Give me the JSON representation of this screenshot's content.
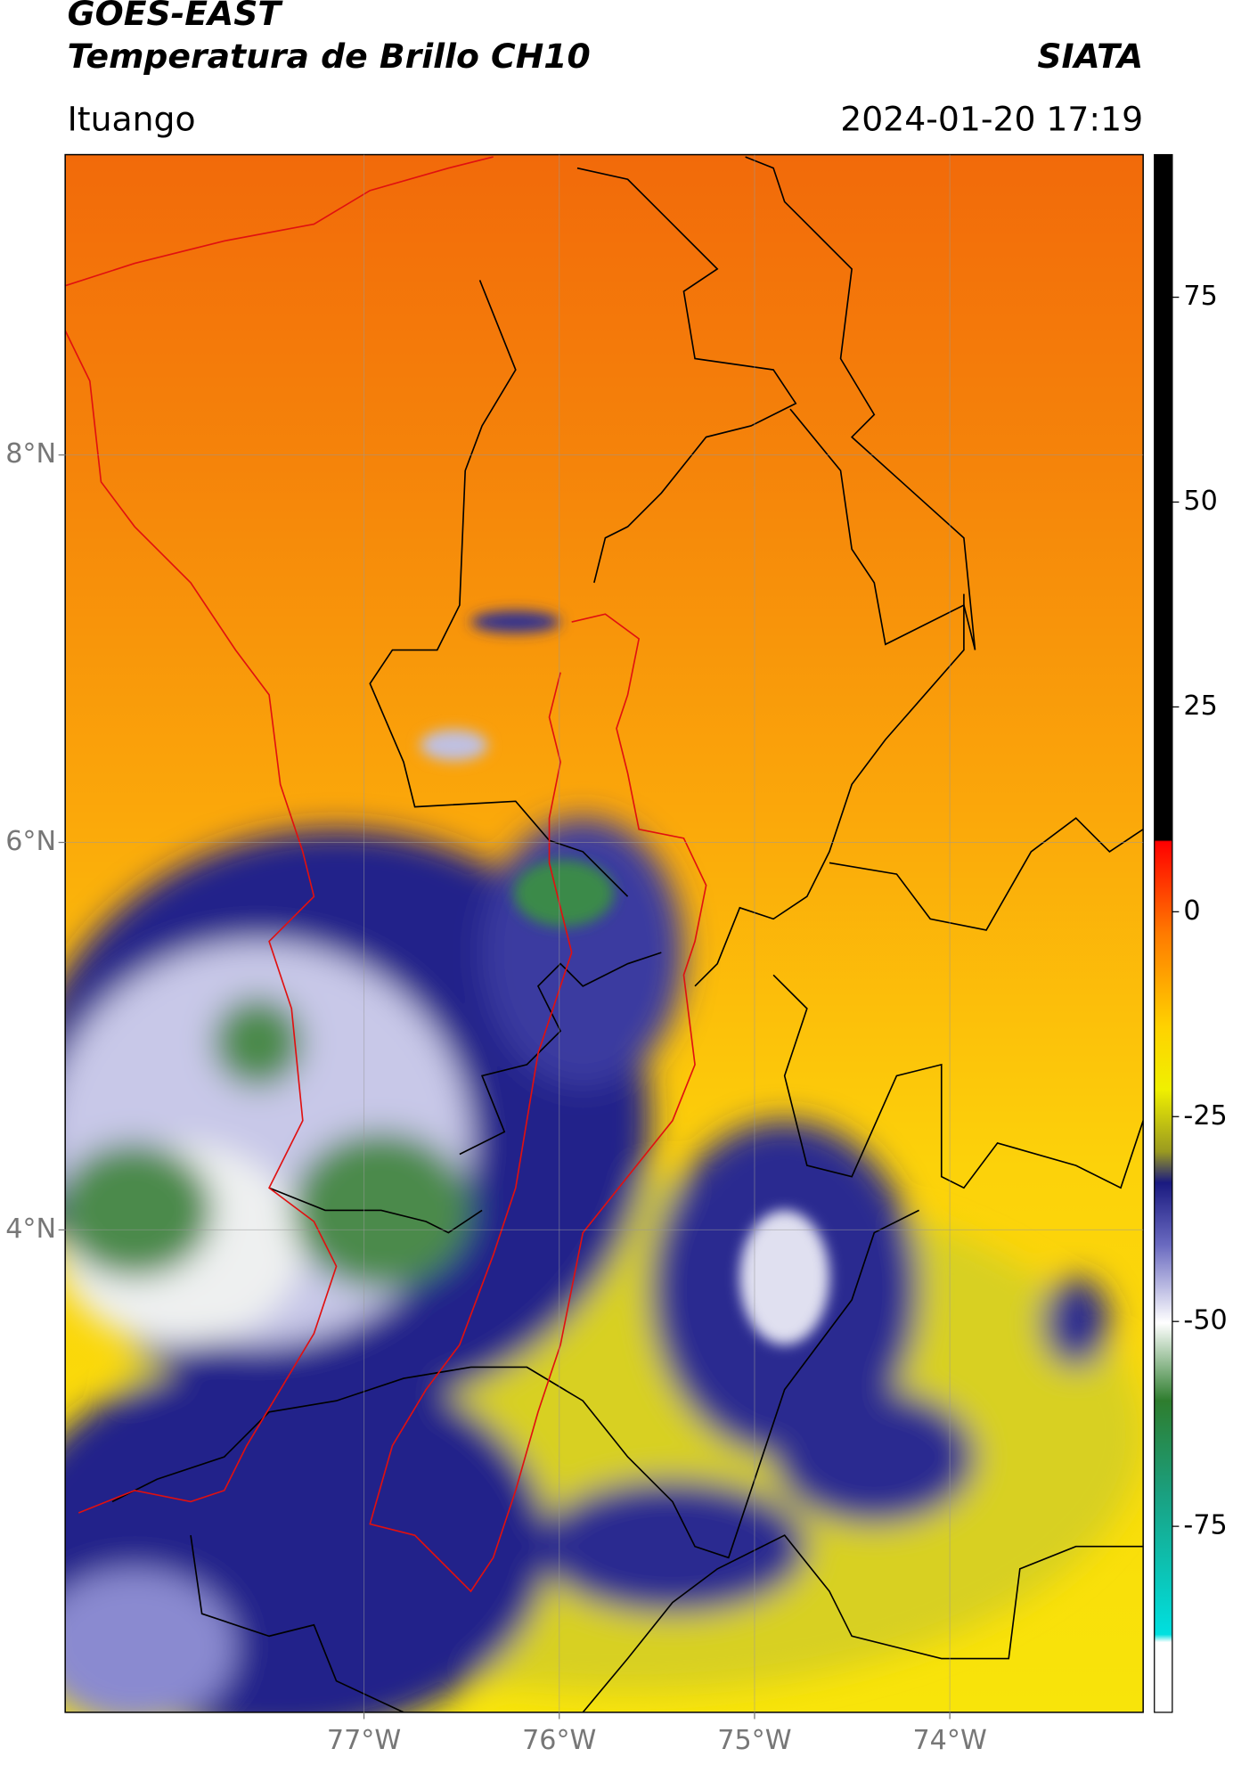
{
  "header": {
    "title": "GOES-EAST",
    "subtitle": "Temperatura de Brillo CH10",
    "source": "SIATA",
    "location": "Ituango",
    "datetime": "2024-01-20 17:19"
  },
  "map": {
    "xlim": [
      -78.53,
      -73.01
    ],
    "ylim": [
      1.51,
      9.55
    ],
    "xticks": [
      {
        "value": -77,
        "label": "77°W"
      },
      {
        "value": -76,
        "label": "76°W"
      },
      {
        "value": -75,
        "label": "75°W"
      },
      {
        "value": -74,
        "label": "74°W"
      }
    ],
    "yticks": [
      {
        "value": 8,
        "label": "8°N"
      },
      {
        "value": 6,
        "label": "6°N"
      },
      {
        "value": 4,
        "label": "4°N"
      }
    ],
    "grid": true
  },
  "colorbar": {
    "lim": [
      -97.7,
      92.4
    ],
    "ticks": [
      75,
      50,
      25,
      0,
      -25,
      -50,
      -75
    ]
  }
}
